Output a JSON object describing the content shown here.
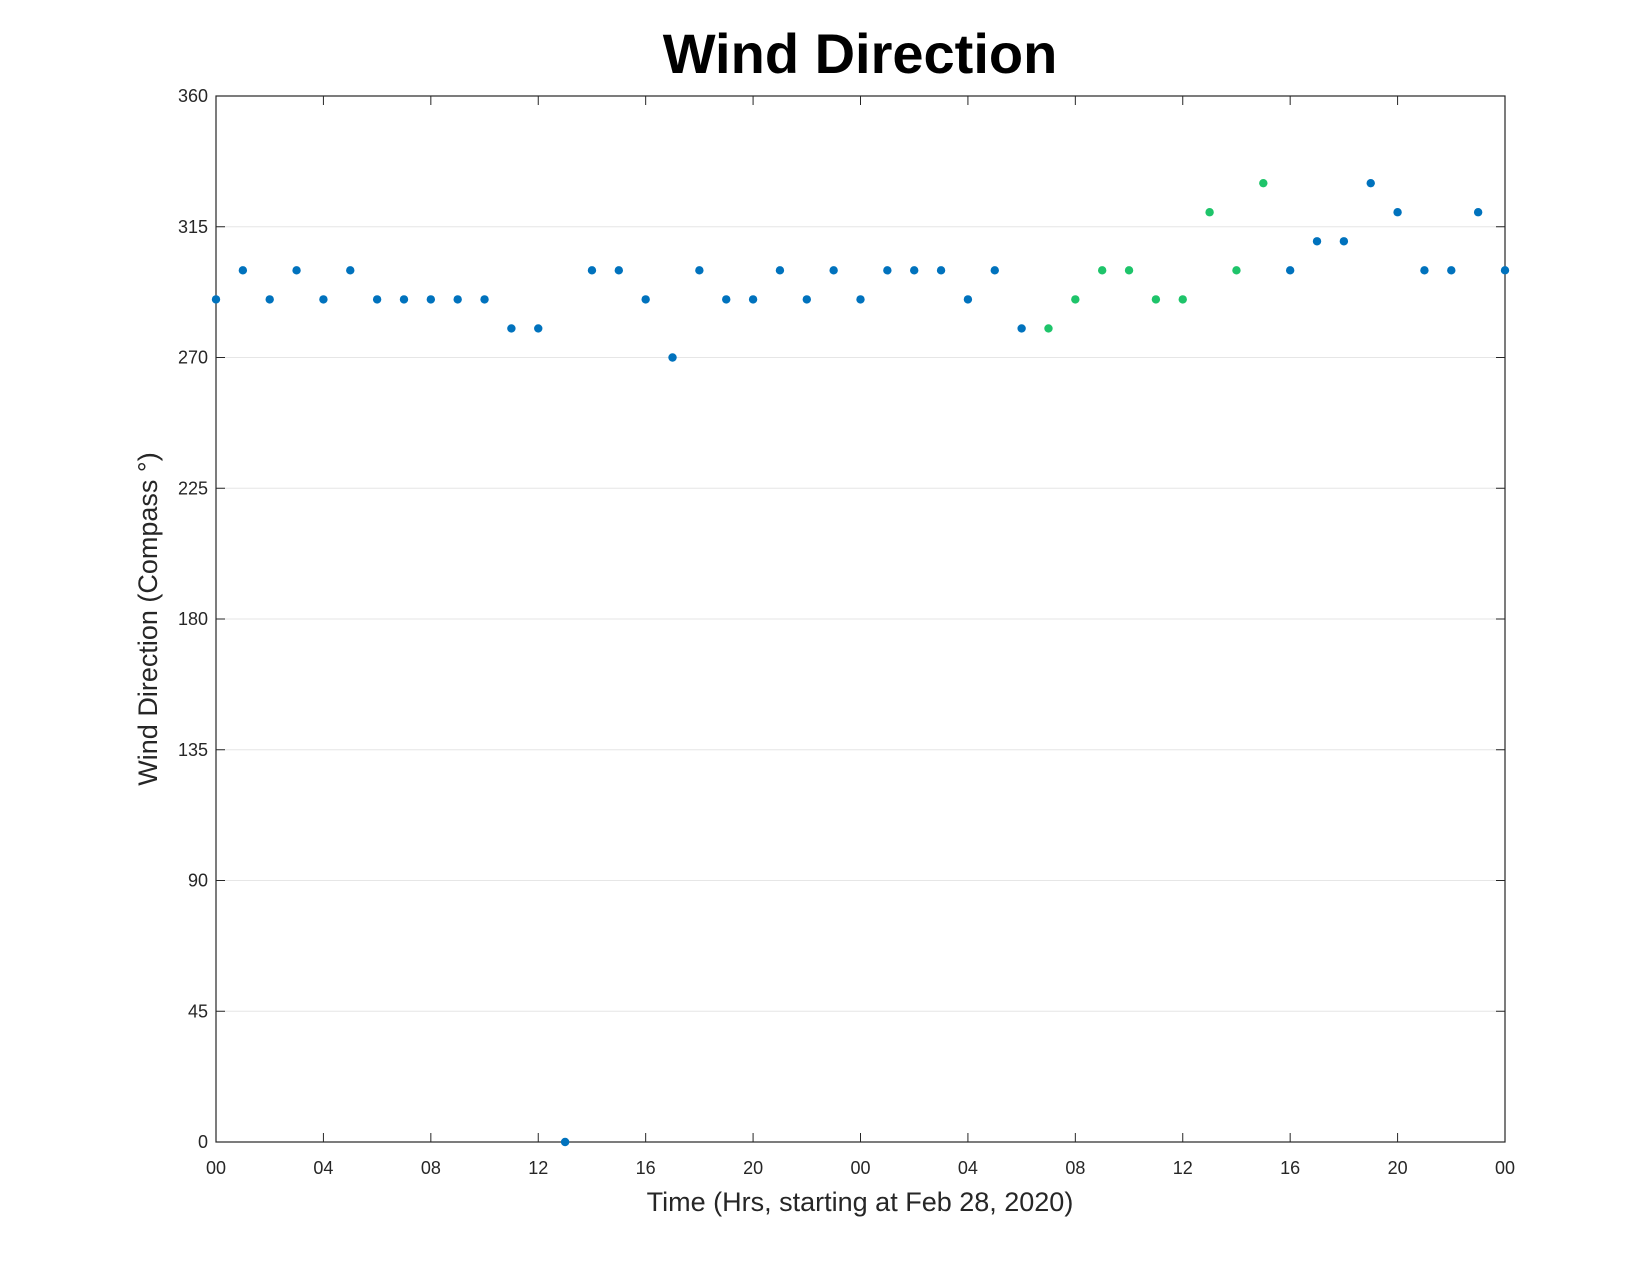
{
  "chart_data": {
    "type": "scatter",
    "title": "Wind Direction",
    "xlabel": "Time (Hrs, starting at Feb 28, 2020)",
    "ylabel": "Wind Direction (Compass °)",
    "xlim": [
      0,
      48
    ],
    "ylim": [
      0,
      360
    ],
    "x_ticks": [
      {
        "value": 0,
        "label": "00"
      },
      {
        "value": 4,
        "label": "04"
      },
      {
        "value": 8,
        "label": "08"
      },
      {
        "value": 12,
        "label": "12"
      },
      {
        "value": 16,
        "label": "16"
      },
      {
        "value": 20,
        "label": "20"
      },
      {
        "value": 24,
        "label": "00"
      },
      {
        "value": 28,
        "label": "04"
      },
      {
        "value": 32,
        "label": "08"
      },
      {
        "value": 36,
        "label": "12"
      },
      {
        "value": 40,
        "label": "16"
      },
      {
        "value": 44,
        "label": "20"
      },
      {
        "value": 48,
        "label": "00"
      }
    ],
    "y_ticks": [
      0,
      45,
      90,
      135,
      180,
      225,
      270,
      315,
      360
    ],
    "grid": true,
    "series": [
      {
        "color": "#0072bd",
        "points": [
          {
            "x": 0,
            "y": 290
          },
          {
            "x": 1,
            "y": 300
          },
          {
            "x": 2,
            "y": 290
          },
          {
            "x": 3,
            "y": 300
          },
          {
            "x": 4,
            "y": 290
          },
          {
            "x": 5,
            "y": 300
          },
          {
            "x": 6,
            "y": 290
          },
          {
            "x": 7,
            "y": 290
          },
          {
            "x": 8,
            "y": 290
          },
          {
            "x": 9,
            "y": 290
          },
          {
            "x": 10,
            "y": 290
          },
          {
            "x": 11,
            "y": 280
          },
          {
            "x": 12,
            "y": 280
          },
          {
            "x": 13,
            "y": 0
          },
          {
            "x": 14,
            "y": 300
          },
          {
            "x": 15,
            "y": 300
          },
          {
            "x": 16,
            "y": 290
          },
          {
            "x": 17,
            "y": 270
          },
          {
            "x": 18,
            "y": 300
          },
          {
            "x": 19,
            "y": 290
          },
          {
            "x": 20,
            "y": 290
          },
          {
            "x": 21,
            "y": 300
          },
          {
            "x": 22,
            "y": 290
          },
          {
            "x": 23,
            "y": 300
          },
          {
            "x": 24,
            "y": 290
          },
          {
            "x": 25,
            "y": 300
          },
          {
            "x": 26,
            "y": 300
          },
          {
            "x": 27,
            "y": 300
          },
          {
            "x": 28,
            "y": 290
          },
          {
            "x": 29,
            "y": 300
          },
          {
            "x": 30,
            "y": 280
          },
          {
            "x": 40,
            "y": 300
          },
          {
            "x": 41,
            "y": 310
          },
          {
            "x": 42,
            "y": 310
          },
          {
            "x": 43,
            "y": 330
          },
          {
            "x": 44,
            "y": 320
          },
          {
            "x": 45,
            "y": 300
          },
          {
            "x": 46,
            "y": 300
          },
          {
            "x": 47,
            "y": 320
          },
          {
            "x": 48,
            "y": 300
          }
        ]
      },
      {
        "color": "#1ec46a",
        "points": [
          {
            "x": 31,
            "y": 280
          },
          {
            "x": 32,
            "y": 290
          },
          {
            "x": 33,
            "y": 300
          },
          {
            "x": 34,
            "y": 300
          },
          {
            "x": 35,
            "y": 290
          },
          {
            "x": 36,
            "y": 290
          },
          {
            "x": 37,
            "y": 320
          },
          {
            "x": 38,
            "y": 300
          },
          {
            "x": 39,
            "y": 330
          }
        ]
      }
    ]
  }
}
